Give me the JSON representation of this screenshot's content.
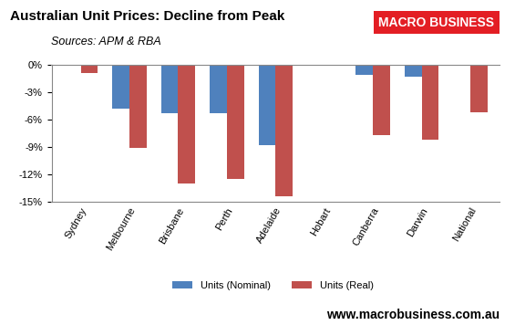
{
  "chart_data": {
    "type": "bar",
    "title": "Australian Unit Prices: Decline from Peak",
    "subtitle": "Sources: APM & RBA",
    "logo": "MACRO BUSINESS",
    "footer": "www.macrobusiness.com.au",
    "categories": [
      "Sydney",
      "Melbourne",
      "Brisbane",
      "Perth",
      "Adelaide",
      "Hobart",
      "Canberra",
      "Darwin",
      "National"
    ],
    "series": [
      {
        "name": "Units (Nominal)",
        "color": "#4f81bd",
        "values": [
          0,
          -4.8,
          -5.3,
          -5.3,
          -8.8,
          0,
          -1.1,
          -1.3,
          0
        ]
      },
      {
        "name": "Units (Real)",
        "color": "#c0504d",
        "values": [
          -0.9,
          -9.1,
          -13.0,
          -12.5,
          -14.4,
          0,
          -7.7,
          -8.2,
          -5.2
        ]
      }
    ],
    "ylim": [
      -15,
      0
    ],
    "yticks": [
      {
        "value": 0,
        "label": "0%"
      },
      {
        "value": -3,
        "label": "-3%"
      },
      {
        "value": -6,
        "label": "-6%"
      },
      {
        "value": -9,
        "label": "-9%"
      },
      {
        "value": -12,
        "label": "-12%"
      },
      {
        "value": -15,
        "label": "-15%"
      }
    ],
    "grid": false,
    "legend": "bottom"
  }
}
